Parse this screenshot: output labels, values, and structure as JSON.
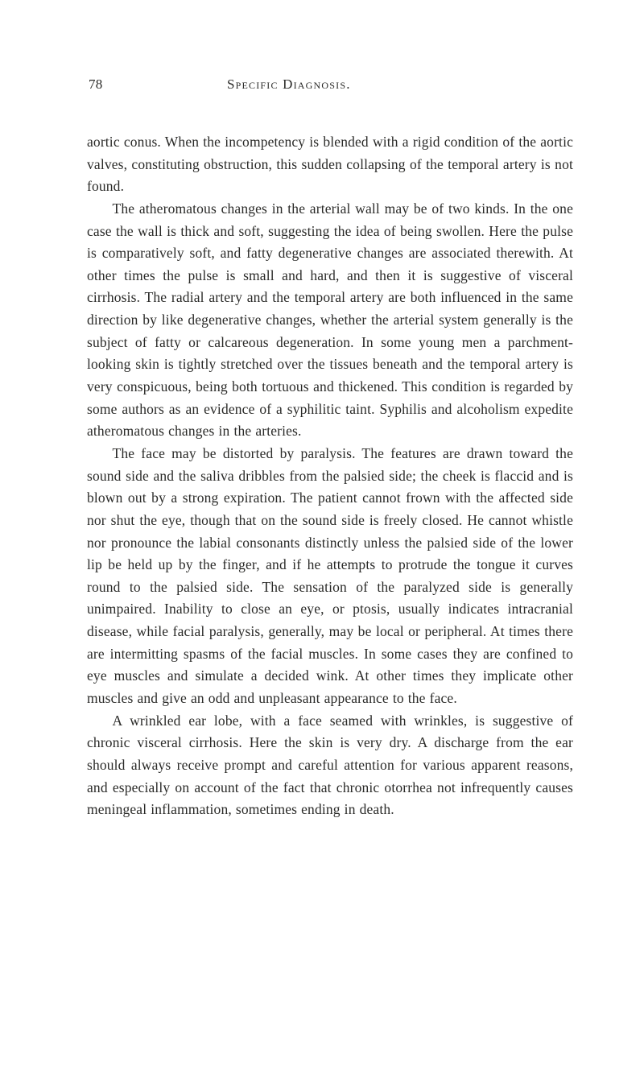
{
  "page": {
    "number": "78",
    "running_head": "Specific Diagnosis.",
    "background_color": "#ffffff",
    "text_color": "#2a2a28",
    "font_family": "Georgia, 'Times New Roman', serif",
    "body_fontsize": 17.5,
    "body_lineheight": 1.58,
    "header_fontsize": 17,
    "paragraphs": [
      "aortic conus. When the incompetency is blended with a rigid condition of the aortic valves, constituting obstruction, this sudden collapsing of the temporal artery is not found.",
      "The atheromatous changes in the arterial wall may be of two kinds. In the one case the wall is thick and soft, suggesting the idea of being swollen. Here the pulse is comparatively soft, and fatty degenerative changes are associated therewith. At other times the pulse is small and hard, and then it is suggestive of visceral cirrhosis. The radial artery and the temporal artery are both influenced in the same direction by like degenerative changes, whether the arterial system generally is the subject of fatty or calcareous degeneration. In some young men a parchment-looking skin is tightly stretched over the tissues beneath and the temporal artery is very conspicuous, being both tortuous and thickened. This condition is regarded by some authors as an evidence of a syphilitic taint. Syphilis and alcoholism expedite atheromatous changes in the arteries.",
      "The face may be distorted by paralysis. The features are drawn toward the sound side and the saliva dribbles from the palsied side; the cheek is flaccid and is blown out by a strong expiration. The patient cannot frown with the affected side nor shut the eye, though that on the sound side is freely closed. He cannot whistle nor pronounce the labial consonants distinctly unless the palsied side of the lower lip be held up by the finger, and if he attempts to protrude the tongue it curves round to the palsied side. The sensation of the paralyzed side is generally unimpaired. Inability to close an eye, or ptosis, usually indicates intracranial disease, while facial paralysis, generally, may be local or peripheral. At times there are intermitting spasms of the facial muscles. In some cases they are confined to eye muscles and simulate a decided wink. At other times they implicate other muscles and give an odd and unpleasant appearance to the face.",
      "A wrinkled ear lobe, with a face seamed with wrinkles, is suggestive of chronic visceral cirrhosis. Here the skin is very dry. A discharge from the ear should always receive prompt and careful attention for various apparent reasons, and especially on account of the fact that chronic otorrhea not infrequently causes meningeal inflammation, sometimes ending in death."
    ]
  }
}
